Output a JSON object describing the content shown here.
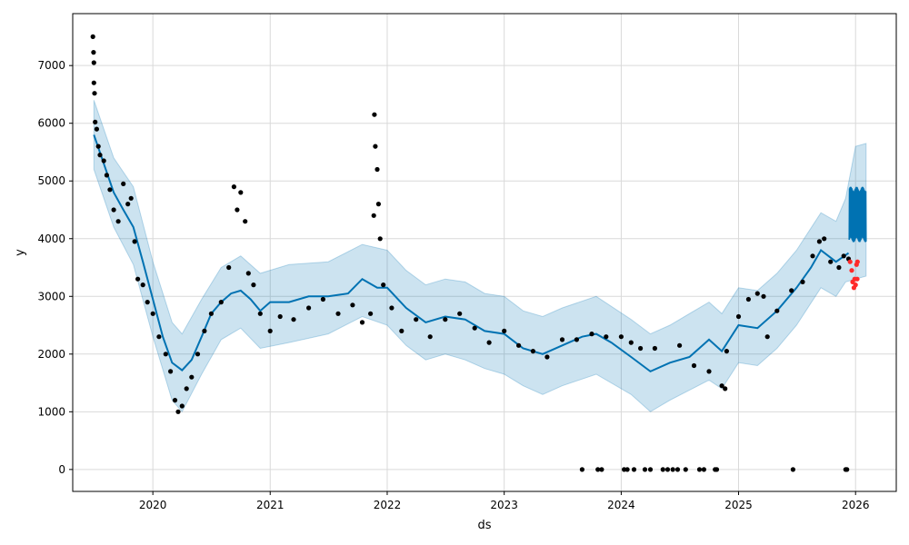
{
  "colors": {
    "forecast_line": "#0072B2",
    "uncertainty_band": "#0072B2",
    "observed_points": "#000000",
    "test_points": "#ff2a2a",
    "grid": "#d9d9d9"
  },
  "chart_data": {
    "type": "line",
    "xlabel": "ds",
    "ylabel": "y",
    "xlim": [
      "2019-04-26",
      "2026-05-08"
    ],
    "ylim": [
      -380,
      7900
    ],
    "x_ticks": [
      "2020",
      "2021",
      "2022",
      "2023",
      "2024",
      "2025",
      "2026"
    ],
    "y_ticks": [
      0,
      1000,
      2000,
      3000,
      4000,
      5000,
      6000,
      7000
    ],
    "grid": true,
    "series": [
      {
        "kind": "line",
        "points": [
          [
            "2019-07-01",
            5800
          ],
          [
            "2019-08-01",
            5300
          ],
          [
            "2019-09-01",
            4800
          ],
          [
            "2019-10-01",
            4500
          ],
          [
            "2019-11-01",
            4200
          ],
          [
            "2019-12-01",
            3600
          ],
          [
            "2020-01-01",
            2950
          ],
          [
            "2020-02-01",
            2300
          ],
          [
            "2020-03-01",
            1850
          ],
          [
            "2020-04-01",
            1720
          ],
          [
            "2020-05-01",
            1900
          ],
          [
            "2020-06-01",
            2300
          ],
          [
            "2020-07-01",
            2700
          ],
          [
            "2020-08-01",
            2900
          ],
          [
            "2020-09-01",
            3050
          ],
          [
            "2020-10-01",
            3100
          ],
          [
            "2020-11-01",
            2950
          ],
          [
            "2020-12-01",
            2750
          ],
          [
            "2021-01-01",
            2900
          ],
          [
            "2021-03-01",
            2900
          ],
          [
            "2021-05-01",
            3000
          ],
          [
            "2021-07-01",
            3000
          ],
          [
            "2021-09-01",
            3050
          ],
          [
            "2021-10-15",
            3300
          ],
          [
            "2021-12-01",
            3150
          ],
          [
            "2022-01-01",
            3150
          ],
          [
            "2022-03-01",
            2800
          ],
          [
            "2022-05-01",
            2550
          ],
          [
            "2022-07-01",
            2650
          ],
          [
            "2022-09-01",
            2600
          ],
          [
            "2022-11-01",
            2400
          ],
          [
            "2023-01-01",
            2350
          ],
          [
            "2023-03-01",
            2100
          ],
          [
            "2023-05-01",
            2000
          ],
          [
            "2023-07-01",
            2150
          ],
          [
            "2023-09-01",
            2300
          ],
          [
            "2023-10-15",
            2350
          ],
          [
            "2023-12-01",
            2200
          ],
          [
            "2024-02-01",
            1950
          ],
          [
            "2024-04-01",
            1700
          ],
          [
            "2024-06-01",
            1850
          ],
          [
            "2024-08-01",
            1950
          ],
          [
            "2024-10-01",
            2250
          ],
          [
            "2024-11-10",
            2050
          ],
          [
            "2025-01-01",
            2500
          ],
          [
            "2025-03-01",
            2450
          ],
          [
            "2025-05-01",
            2750
          ],
          [
            "2025-07-01",
            3150
          ],
          [
            "2025-08-15",
            3500
          ],
          [
            "2025-09-15",
            3800
          ],
          [
            "2025-11-01",
            3600
          ],
          [
            "2025-12-10",
            3750
          ]
        ]
      },
      {
        "kind": "band_upper",
        "points": [
          [
            "2019-07-01",
            6400
          ],
          [
            "2019-09-01",
            5400
          ],
          [
            "2019-11-01",
            4900
          ],
          [
            "2020-01-01",
            3600
          ],
          [
            "2020-03-01",
            2550
          ],
          [
            "2020-04-01",
            2350
          ],
          [
            "2020-06-01",
            2950
          ],
          [
            "2020-08-01",
            3500
          ],
          [
            "2020-10-01",
            3700
          ],
          [
            "2020-12-01",
            3400
          ],
          [
            "2021-03-01",
            3550
          ],
          [
            "2021-07-01",
            3600
          ],
          [
            "2021-10-15",
            3900
          ],
          [
            "2022-01-01",
            3800
          ],
          [
            "2022-03-01",
            3450
          ],
          [
            "2022-05-01",
            3200
          ],
          [
            "2022-07-01",
            3300
          ],
          [
            "2022-09-01",
            3250
          ],
          [
            "2022-11-01",
            3050
          ],
          [
            "2023-01-01",
            3000
          ],
          [
            "2023-03-01",
            2750
          ],
          [
            "2023-05-01",
            2650
          ],
          [
            "2023-07-01",
            2800
          ],
          [
            "2023-10-15",
            3000
          ],
          [
            "2024-02-01",
            2600
          ],
          [
            "2024-04-01",
            2350
          ],
          [
            "2024-06-01",
            2500
          ],
          [
            "2024-10-01",
            2900
          ],
          [
            "2024-11-10",
            2700
          ],
          [
            "2025-01-01",
            3150
          ],
          [
            "2025-03-01",
            3100
          ],
          [
            "2025-05-01",
            3400
          ],
          [
            "2025-07-01",
            3800
          ],
          [
            "2025-09-15",
            4450
          ],
          [
            "2025-11-01",
            4300
          ],
          [
            "2025-12-01",
            4700
          ],
          [
            "2026-01-01",
            5600
          ],
          [
            "2026-02-03",
            5650
          ]
        ]
      },
      {
        "kind": "band_lower",
        "points": [
          [
            "2019-07-01",
            5200
          ],
          [
            "2019-09-01",
            4200
          ],
          [
            "2019-11-01",
            3550
          ],
          [
            "2020-01-01",
            2300
          ],
          [
            "2020-03-01",
            1200
          ],
          [
            "2020-04-01",
            1000
          ],
          [
            "2020-06-01",
            1650
          ],
          [
            "2020-08-01",
            2250
          ],
          [
            "2020-10-01",
            2450
          ],
          [
            "2020-12-01",
            2100
          ],
          [
            "2021-03-01",
            2200
          ],
          [
            "2021-07-01",
            2350
          ],
          [
            "2021-10-15",
            2650
          ],
          [
            "2022-01-01",
            2500
          ],
          [
            "2022-03-01",
            2150
          ],
          [
            "2022-05-01",
            1900
          ],
          [
            "2022-07-01",
            2000
          ],
          [
            "2022-09-01",
            1900
          ],
          [
            "2022-11-01",
            1750
          ],
          [
            "2023-01-01",
            1650
          ],
          [
            "2023-03-01",
            1450
          ],
          [
            "2023-05-01",
            1300
          ],
          [
            "2023-07-01",
            1450
          ],
          [
            "2023-10-15",
            1650
          ],
          [
            "2024-02-01",
            1300
          ],
          [
            "2024-04-01",
            1000
          ],
          [
            "2024-06-01",
            1200
          ],
          [
            "2024-10-01",
            1550
          ],
          [
            "2024-11-10",
            1400
          ],
          [
            "2025-01-01",
            1850
          ],
          [
            "2025-03-01",
            1800
          ],
          [
            "2025-05-01",
            2100
          ],
          [
            "2025-07-01",
            2500
          ],
          [
            "2025-09-15",
            3150
          ],
          [
            "2025-11-01",
            3000
          ],
          [
            "2025-12-01",
            3250
          ],
          [
            "2026-01-01",
            3300
          ],
          [
            "2026-02-03",
            3350
          ]
        ]
      },
      {
        "kind": "scatter_observed",
        "points": [
          [
            "2019-06-28",
            7500
          ],
          [
            "2019-06-30",
            7230
          ],
          [
            "2019-07-01",
            7050
          ],
          [
            "2019-07-01",
            6700
          ],
          [
            "2019-07-03",
            6520
          ],
          [
            "2019-07-05",
            6020
          ],
          [
            "2019-07-10",
            5900
          ],
          [
            "2019-07-15",
            5600
          ],
          [
            "2019-07-20",
            5450
          ],
          [
            "2019-08-01",
            5350
          ],
          [
            "2019-08-10",
            5100
          ],
          [
            "2019-08-20",
            4850
          ],
          [
            "2019-09-01",
            4500
          ],
          [
            "2019-09-15",
            4300
          ],
          [
            "2019-10-01",
            4950
          ],
          [
            "2019-10-15",
            4600
          ],
          [
            "2019-10-25",
            4700
          ],
          [
            "2019-11-05",
            3950
          ],
          [
            "2019-11-15",
            3300
          ],
          [
            "2019-12-01",
            3200
          ],
          [
            "2019-12-15",
            2900
          ],
          [
            "2020-01-01",
            2700
          ],
          [
            "2020-01-20",
            2300
          ],
          [
            "2020-02-10",
            2000
          ],
          [
            "2020-02-25",
            1700
          ],
          [
            "2020-03-10",
            1200
          ],
          [
            "2020-03-20",
            1000
          ],
          [
            "2020-04-01",
            1100
          ],
          [
            "2020-04-15",
            1400
          ],
          [
            "2020-05-01",
            1600
          ],
          [
            "2020-05-20",
            2000
          ],
          [
            "2020-06-10",
            2400
          ],
          [
            "2020-07-01",
            2700
          ],
          [
            "2020-08-01",
            2900
          ],
          [
            "2020-08-25",
            3500
          ],
          [
            "2020-09-10",
            4900
          ],
          [
            "2020-09-20",
            4500
          ],
          [
            "2020-10-01",
            4800
          ],
          [
            "2020-10-15",
            4300
          ],
          [
            "2020-10-25",
            3400
          ],
          [
            "2020-11-10",
            3200
          ],
          [
            "2020-12-01",
            2700
          ],
          [
            "2021-01-01",
            2400
          ],
          [
            "2021-02-01",
            2650
          ],
          [
            "2021-03-15",
            2600
          ],
          [
            "2021-05-01",
            2800
          ],
          [
            "2021-06-15",
            2950
          ],
          [
            "2021-08-01",
            2700
          ],
          [
            "2021-09-15",
            2850
          ],
          [
            "2021-10-15",
            2550
          ],
          [
            "2021-11-10",
            2700
          ],
          [
            "2021-11-20",
            4400
          ],
          [
            "2021-11-22",
            6150
          ],
          [
            "2021-11-25",
            5600
          ],
          [
            "2021-12-01",
            5200
          ],
          [
            "2021-12-05",
            4600
          ],
          [
            "2021-12-10",
            4000
          ],
          [
            "2021-12-20",
            3200
          ],
          [
            "2022-01-15",
            2800
          ],
          [
            "2022-02-15",
            2400
          ],
          [
            "2022-04-01",
            2600
          ],
          [
            "2022-05-15",
            2300
          ],
          [
            "2022-07-01",
            2600
          ],
          [
            "2022-08-15",
            2700
          ],
          [
            "2022-10-01",
            2450
          ],
          [
            "2022-11-15",
            2200
          ],
          [
            "2023-01-01",
            2400
          ],
          [
            "2023-02-15",
            2150
          ],
          [
            "2023-04-01",
            2050
          ],
          [
            "2023-05-15",
            1950
          ],
          [
            "2023-07-01",
            2250
          ],
          [
            "2023-08-15",
            2250
          ],
          [
            "2023-09-01",
            0
          ],
          [
            "2023-10-01",
            2350
          ],
          [
            "2023-10-20",
            0
          ],
          [
            "2023-11-01",
            0
          ],
          [
            "2023-11-15",
            2300
          ],
          [
            "2024-01-01",
            2300
          ],
          [
            "2024-01-10",
            0
          ],
          [
            "2024-01-20",
            0
          ],
          [
            "2024-02-01",
            2200
          ],
          [
            "2024-02-10",
            0
          ],
          [
            "2024-03-01",
            2100
          ],
          [
            "2024-03-15",
            0
          ],
          [
            "2024-04-01",
            0
          ],
          [
            "2024-04-15",
            2100
          ],
          [
            "2024-05-10",
            0
          ],
          [
            "2024-05-25",
            0
          ],
          [
            "2024-06-10",
            0
          ],
          [
            "2024-06-25",
            0
          ],
          [
            "2024-07-01",
            2150
          ],
          [
            "2024-07-20",
            0
          ],
          [
            "2024-08-15",
            1800
          ],
          [
            "2024-09-01",
            0
          ],
          [
            "2024-09-15",
            0
          ],
          [
            "2024-10-01",
            1700
          ],
          [
            "2024-10-20",
            0
          ],
          [
            "2024-10-25",
            0
          ],
          [
            "2024-11-10",
            1450
          ],
          [
            "2024-11-20",
            1400
          ],
          [
            "2024-11-25",
            2050
          ],
          [
            "2025-01-01",
            2650
          ],
          [
            "2025-02-01",
            2950
          ],
          [
            "2025-03-01",
            3050
          ],
          [
            "2025-03-20",
            3000
          ],
          [
            "2025-04-01",
            2300
          ],
          [
            "2025-05-01",
            2750
          ],
          [
            "2025-06-15",
            3100
          ],
          [
            "2025-06-20",
            0
          ],
          [
            "2025-07-20",
            3250
          ],
          [
            "2025-08-20",
            3700
          ],
          [
            "2025-09-10",
            3950
          ],
          [
            "2025-09-25",
            4000
          ],
          [
            "2025-10-15",
            3600
          ],
          [
            "2025-11-10",
            3500
          ],
          [
            "2025-11-25",
            3700
          ],
          [
            "2025-12-01",
            0
          ],
          [
            "2025-12-05",
            0
          ],
          [
            "2025-12-10",
            3650
          ]
        ]
      },
      {
        "kind": "scatter_test",
        "points": [
          [
            "2025-12-15",
            3600
          ],
          [
            "2025-12-20",
            3450
          ],
          [
            "2025-12-23",
            3250
          ],
          [
            "2025-12-27",
            3150
          ],
          [
            "2025-12-29",
            3300
          ],
          [
            "2026-01-01",
            3200
          ],
          [
            "2026-01-04",
            3550
          ],
          [
            "2026-01-07",
            3600
          ],
          [
            "2026-01-06",
            3300
          ]
        ]
      }
    ]
  }
}
